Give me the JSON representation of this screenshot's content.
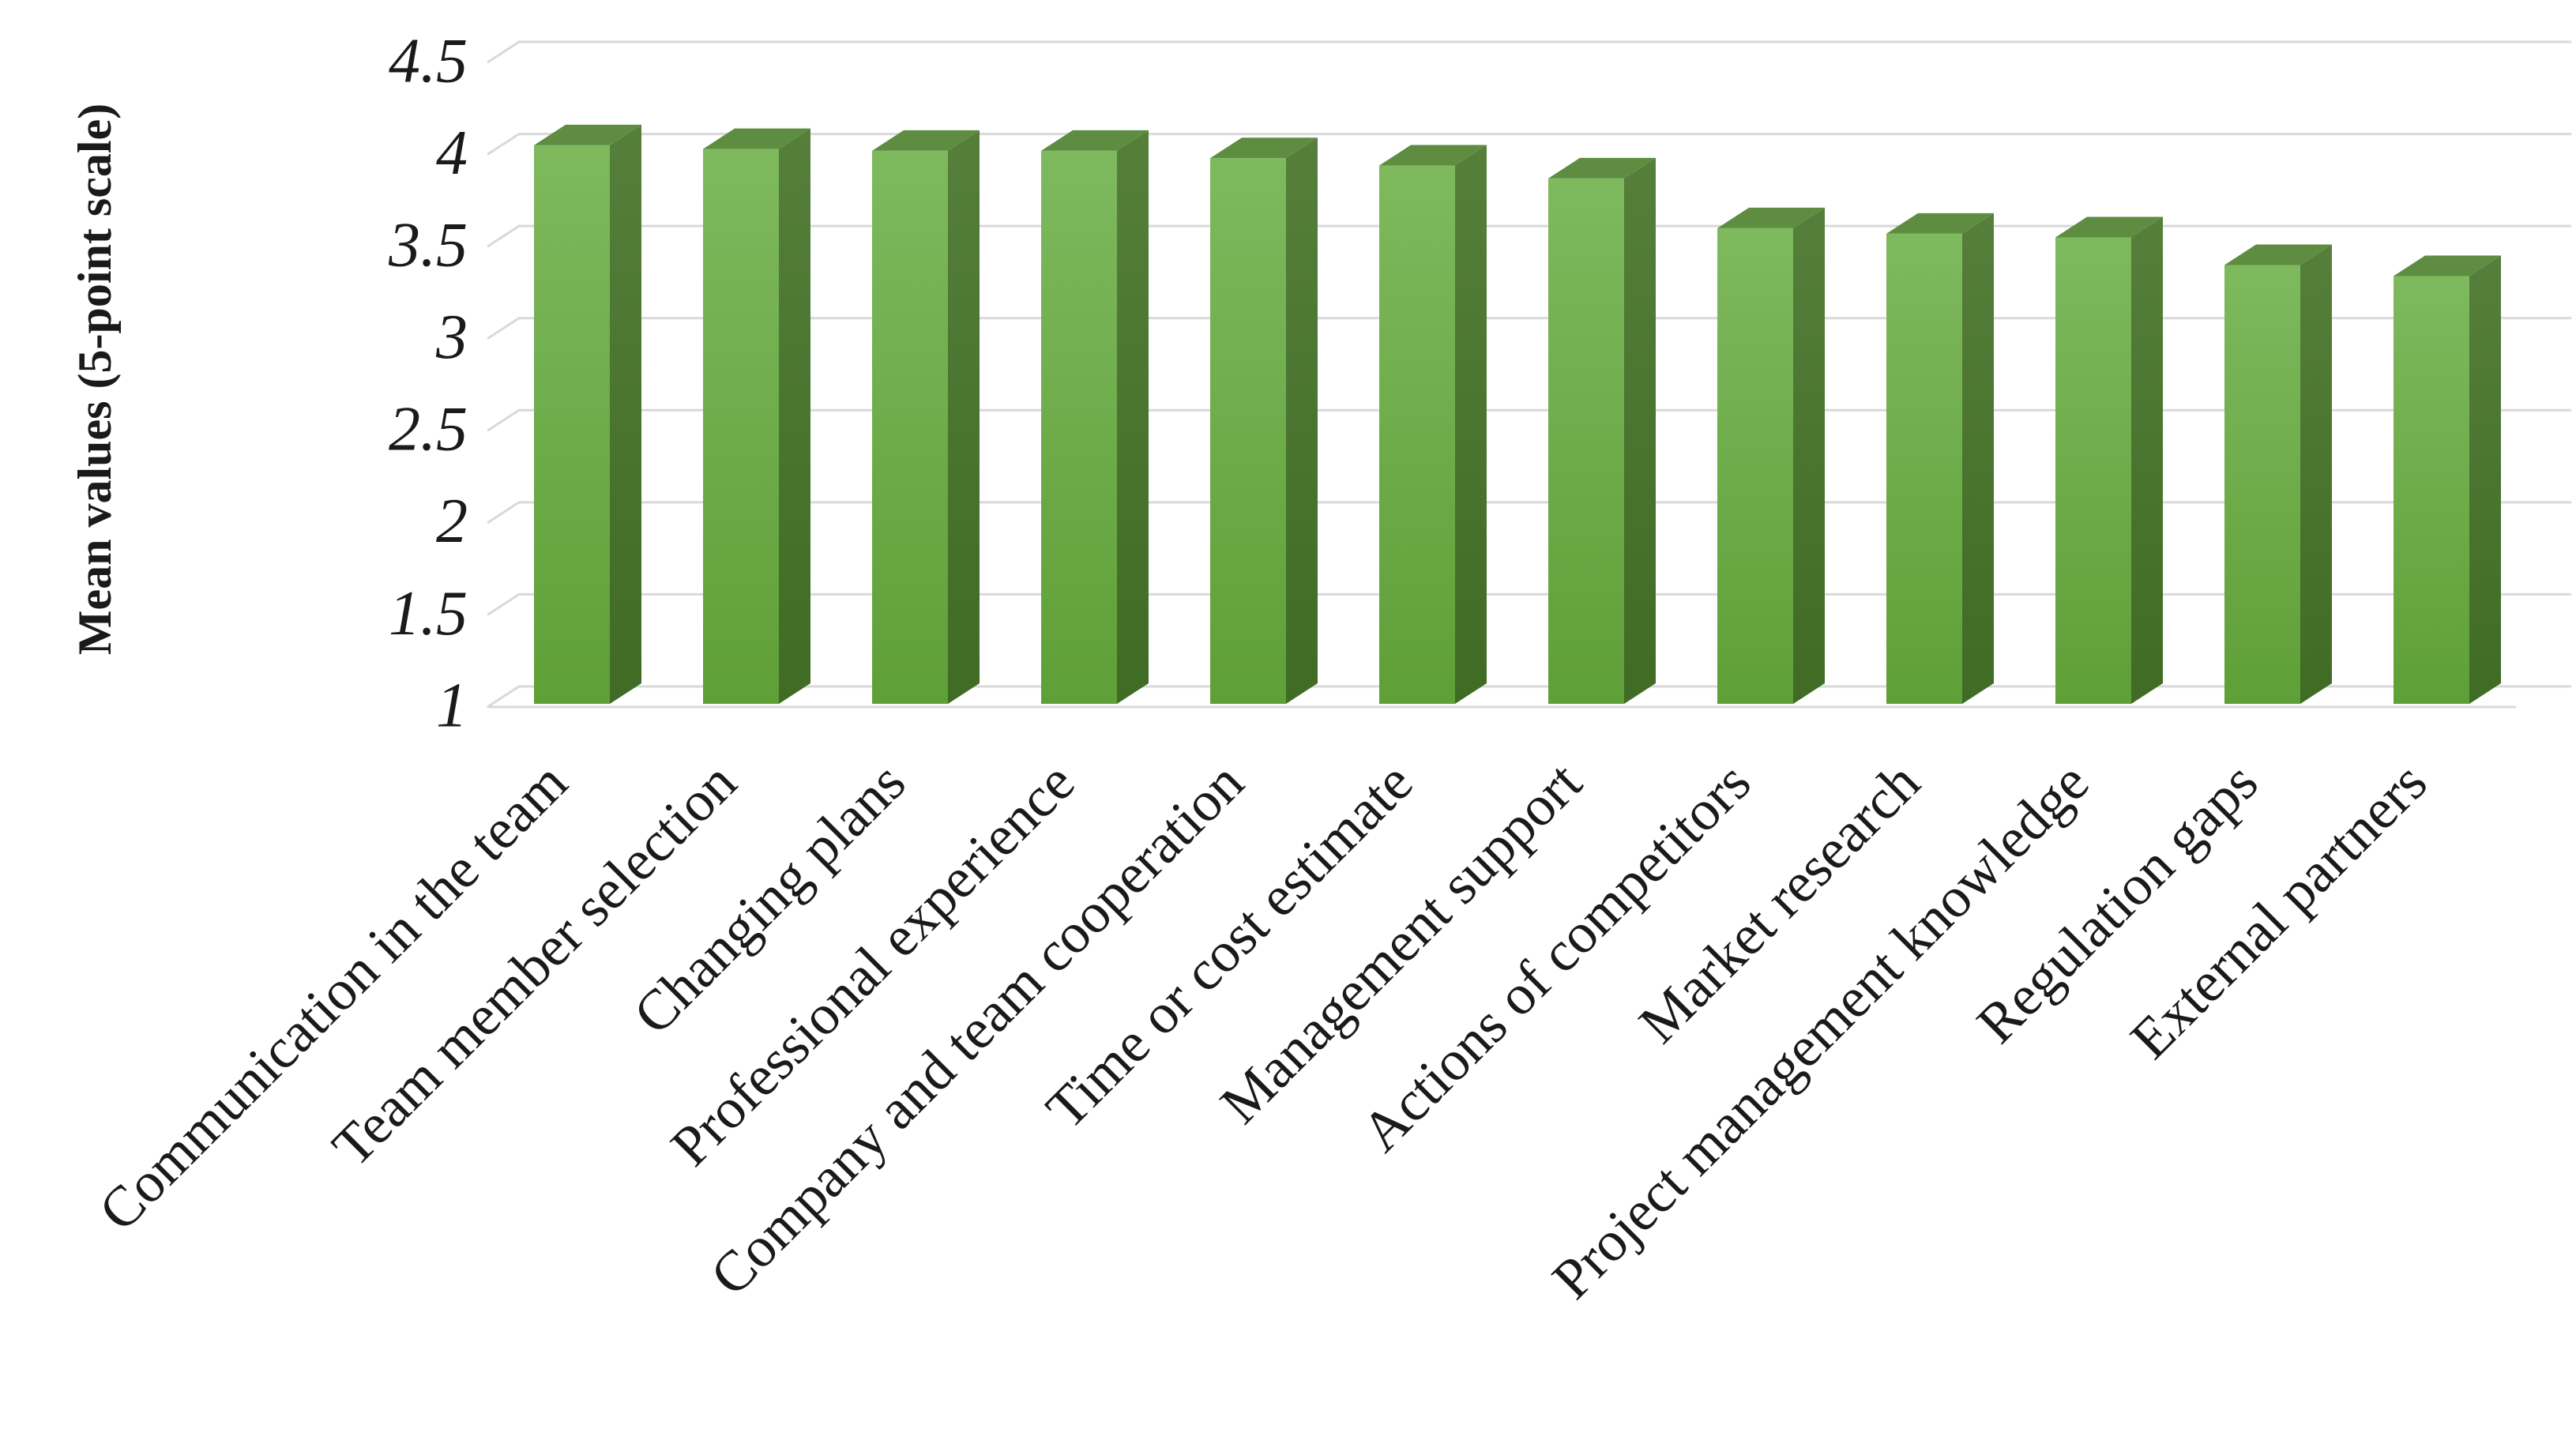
{
  "chart_data": {
    "type": "bar3d",
    "y_label": "Mean values (5-point scale)",
    "categories": [
      "Communication in the team",
      "Team member selection",
      "Changing plans",
      "Professional experience",
      "Company and team cooperation",
      "Time or cost estimate",
      "Management support",
      "Actions of competitors",
      "Market research",
      "Project management knowledge",
      "Regulation gaps",
      "External partners"
    ],
    "values": [
      4.05,
      4.03,
      4.02,
      4.02,
      3.98,
      3.94,
      3.87,
      3.6,
      3.57,
      3.55,
      3.4,
      3.34
    ],
    "color": "#70ad47",
    "ylim": [
      1,
      4.5
    ],
    "yticks": [
      1,
      1.5,
      2,
      2.5,
      3,
      3.5,
      4,
      4.5
    ],
    "grid": true
  }
}
